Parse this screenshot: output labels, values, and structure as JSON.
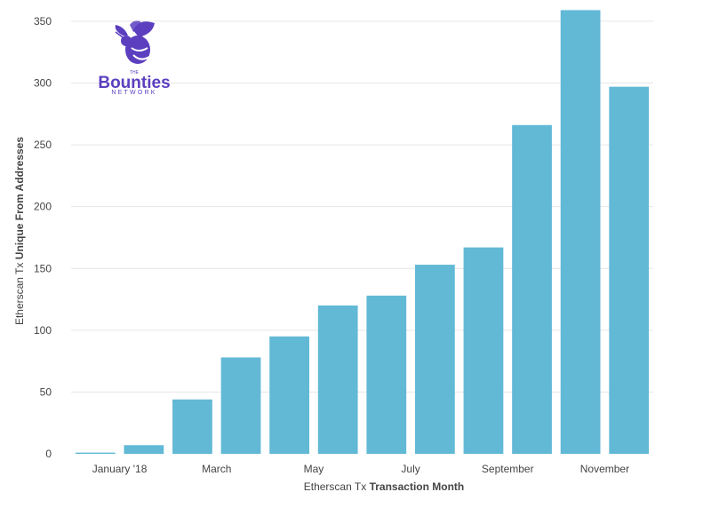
{
  "chart_data": {
    "type": "bar",
    "x_axis_type": "date",
    "categories": [
      "2017-12",
      "2018-01",
      "2018-02",
      "2018-03",
      "2018-04",
      "2018-05",
      "2018-06",
      "2018-07",
      "2018-08",
      "2018-09",
      "2018-10",
      "2018-11"
    ],
    "values": [
      1,
      7,
      44,
      78,
      95,
      120,
      128,
      153,
      167,
      266,
      359,
      297
    ],
    "xlabel_prefix": "Etherscan Tx",
    "xlabel_bold": "Transaction Month",
    "ylabel_prefix": "Etherscan Tx",
    "ylabel_bold": "Unique From Addresses",
    "ylim": [
      0,
      360
    ],
    "yticks": [
      0,
      50,
      100,
      150,
      200,
      250,
      300,
      350
    ],
    "xtick_labels": [
      {
        "category": "2018-01",
        "label": "January '18"
      },
      {
        "category": "2018-03",
        "label": "March"
      },
      {
        "category": "2018-05",
        "label": "May"
      },
      {
        "category": "2018-07",
        "label": "July"
      },
      {
        "category": "2018-09",
        "label": "September"
      },
      {
        "category": "2018-11",
        "label": "November"
      }
    ],
    "bar_color": "#62b9d6",
    "grid": true,
    "legend": false
  },
  "logo": {
    "small_text": "THE",
    "main_text": "Bounties",
    "sub_text": "NETWORK",
    "color": "#5b3fbf",
    "icon": "bee-icon"
  }
}
